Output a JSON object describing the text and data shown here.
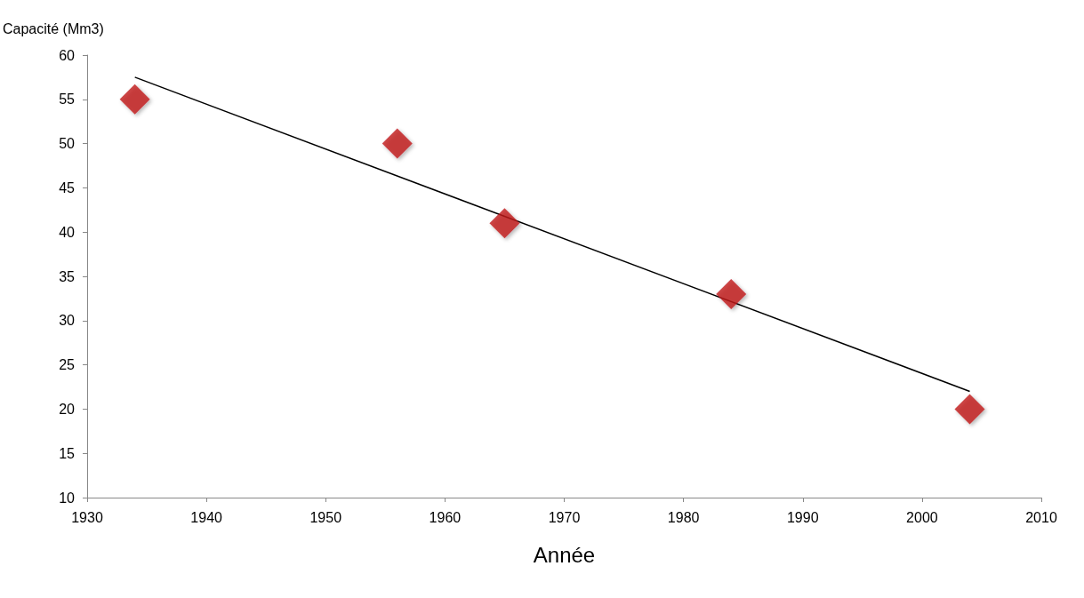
{
  "chart_data": {
    "type": "scatter",
    "xlabel": "Année",
    "ylabel": "Capacité (Mm3)",
    "xlim": [
      1930,
      2010
    ],
    "xticks": [
      1930,
      1940,
      1950,
      1960,
      1970,
      1980,
      1990,
      2000,
      2010
    ],
    "ylim": [
      10,
      60
    ],
    "yticks": [
      10,
      15,
      20,
      25,
      30,
      35,
      40,
      45,
      50,
      55,
      60
    ],
    "grid": false,
    "marker": "diamond",
    "series": [
      {
        "color": "#c0181c",
        "x": [
          1934,
          1956,
          1965,
          1984,
          2004
        ],
        "values": [
          55,
          50,
          41,
          33,
          20
        ]
      },
      {
        "type": "line",
        "color": "#000000",
        "marker": "none",
        "line_style": "solid",
        "x": [
          1934,
          2004
        ],
        "values": [
          57.5,
          22
        ]
      }
    ]
  }
}
